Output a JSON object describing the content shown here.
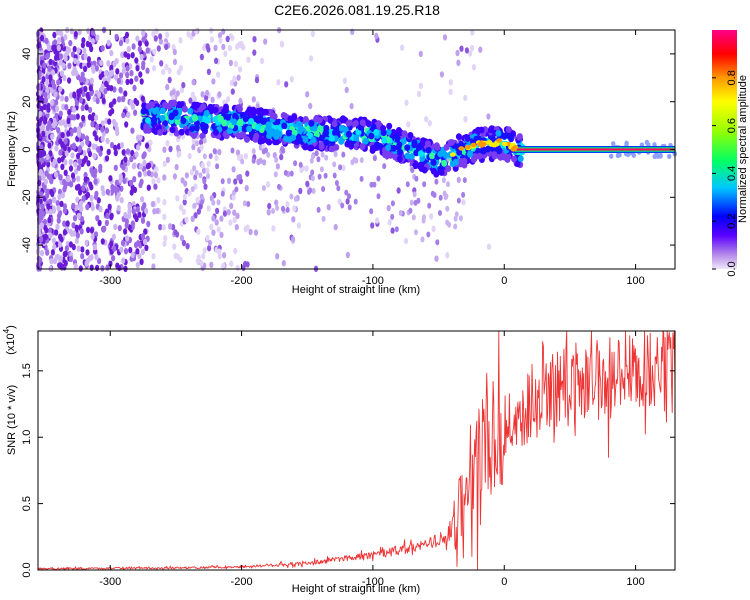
{
  "chart_data": [
    {
      "type": "heatmap",
      "title": "C2E6.2026.081.19.25.R18",
      "xlabel": "Height of straight line (km)",
      "ylabel": "Frequency (Hz)",
      "xlim": [
        -355,
        130
      ],
      "ylim": [
        -50,
        50
      ],
      "xticks": [
        -300,
        -200,
        -100,
        0,
        100
      ],
      "xtick_labels": [
        "-300",
        "-200",
        "-100",
        "0",
        "100"
      ],
      "yticks": [
        -40,
        -20,
        0,
        20,
        40
      ],
      "ytick_labels": [
        "-40",
        "-20",
        "0",
        "20",
        "40"
      ],
      "ridge": [
        {
          "x": -270,
          "f": 14
        },
        {
          "x": -230,
          "f": 12
        },
        {
          "x": -200,
          "f": 11
        },
        {
          "x": -150,
          "f": 7
        },
        {
          "x": -100,
          "f": 6
        },
        {
          "x": -70,
          "f": 0
        },
        {
          "x": -50,
          "f": -5
        },
        {
          "x": -35,
          "f": -1
        },
        {
          "x": -20,
          "f": 2
        },
        {
          "x": 0,
          "f": 3
        },
        {
          "x": 10,
          "f": 0
        },
        {
          "x": 130,
          "f": 0
        }
      ],
      "colorbar": {
        "label": "Normalized spectral amplitude",
        "range": [
          0,
          1
        ],
        "ticks": [
          0.0,
          0.2,
          0.4,
          0.6,
          0.8
        ],
        "tick_labels": [
          "0.0",
          "0.2",
          "0.4",
          "0.6",
          "0.8"
        ]
      }
    },
    {
      "type": "line",
      "xlabel": "Height of straight line (km)",
      "ylabel": "SNR (10 * v/v)",
      "scale_label": "(x10",
      "scale_exponent": "4",
      "scale_close": ")",
      "xlim": [
        -355,
        130
      ],
      "ylim": [
        0,
        1.8
      ],
      "xticks": [
        -300,
        -200,
        -100,
        0,
        100
      ],
      "xtick_labels": [
        "-300",
        "-200",
        "-100",
        "0",
        "100"
      ],
      "yticks": [
        0.0,
        0.5,
        1.0,
        1.5
      ],
      "ytick_labels": [
        "0.0",
        "0.5",
        "1.0",
        "1.5"
      ],
      "series": [
        {
          "name": "SNR",
          "color": "#ee3333",
          "trend_x": [
            -355,
            -250,
            -200,
            -150,
            -120,
            -90,
            -60,
            -40,
            -30,
            -20,
            -10,
            0,
            10,
            30,
            50,
            80,
            100,
            130
          ],
          "trend_y": [
            0.01,
            0.015,
            0.025,
            0.05,
            0.09,
            0.13,
            0.18,
            0.28,
            0.55,
            0.9,
            0.95,
            1.05,
            1.15,
            1.3,
            1.4,
            1.45,
            1.48,
            1.5
          ]
        }
      ]
    }
  ]
}
